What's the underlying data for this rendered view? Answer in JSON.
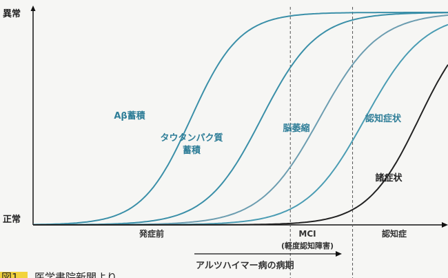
{
  "chart_data": {
    "type": "line",
    "title": "",
    "xlabel": "",
    "ylabel": "",
    "y_ticks": [
      "異常",
      "正常"
    ],
    "ylim": [
      0,
      1
    ],
    "x_phases": [
      {
        "label": "発症前",
        "sub": ""
      },
      {
        "label": "MCI",
        "sub": "(軽度認知障害)"
      },
      {
        "label": "認知症",
        "sub": ""
      }
    ],
    "x_range": [
      0,
      100
    ],
    "phase_boundaries": [
      62,
      77
    ],
    "period_arrow_label": "アルツハイマー病の病期",
    "series": [
      {
        "name": "Aβ蓄積",
        "midpoint": 38,
        "steepness": 0.17,
        "color": "#3a8fa8"
      },
      {
        "name": "タウタンパク質\n蓄積",
        "midpoint": 55,
        "steepness": 0.15,
        "color": "#3a8fa8"
      },
      {
        "name": "脳萎縮",
        "midpoint": 69,
        "steepness": 0.14,
        "color": "#6c9db0"
      },
      {
        "name": "認知症状",
        "midpoint": 80,
        "steepness": 0.14,
        "color": "#4a9cb3"
      },
      {
        "name": "諸症状",
        "midpoint": 93,
        "steepness": 0.16,
        "color": "#222222"
      }
    ]
  },
  "caption": {
    "tag": "図1",
    "text": "医学書院新聞より"
  },
  "colors": {
    "axis": "#111111",
    "dashed": "#555555",
    "caption_tag_bg": "#f2d33d"
  }
}
